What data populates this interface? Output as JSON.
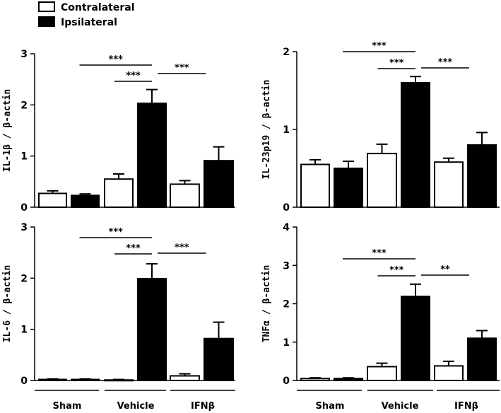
{
  "legend": [
    {
      "label": "Contralateral",
      "fill": "#ffffff"
    },
    {
      "label": "Ipsilateral",
      "fill": "#000000"
    }
  ],
  "groups": [
    "Sham",
    "Vehicle",
    "IFNβ"
  ],
  "chart_data": [
    {
      "type": "bar",
      "ylabel": "IL-1β / β-actin",
      "ylim": [
        0,
        3
      ],
      "yticks": [
        "0",
        "1",
        "2",
        "3"
      ],
      "categories": [
        "Sham",
        "Vehicle",
        "IFNβ"
      ],
      "series": [
        {
          "name": "Contralateral",
          "values": [
            0.27,
            0.55,
            0.45
          ],
          "errors": [
            0.05,
            0.1,
            0.07
          ]
        },
        {
          "name": "Ipsilateral",
          "values": [
            0.23,
            2.03,
            0.91
          ],
          "errors": [
            0.03,
            0.27,
            0.27
          ]
        }
      ],
      "significance": [
        {
          "label": "***",
          "from": [
            0,
            1
          ],
          "to": [
            1,
            1
          ]
        },
        {
          "label": "***",
          "from": [
            1,
            0
          ],
          "to": [
            1,
            1
          ]
        },
        {
          "label": "***",
          "from": [
            1,
            1
          ],
          "to": [
            2,
            1
          ]
        }
      ]
    },
    {
      "type": "bar",
      "ylabel": "IL-23p19 / β-actin",
      "ylim": [
        0,
        2
      ],
      "yticks": [
        "0",
        "1",
        "2"
      ],
      "categories": [
        "Sham",
        "Vehicle",
        "IFNβ"
      ],
      "series": [
        {
          "name": "Contralateral",
          "values": [
            0.55,
            0.69,
            0.58
          ],
          "errors": [
            0.06,
            0.12,
            0.05
          ]
        },
        {
          "name": "Ipsilateral",
          "values": [
            0.5,
            1.6,
            0.8
          ],
          "errors": [
            0.09,
            0.08,
            0.16
          ]
        }
      ],
      "significance": [
        {
          "label": "***",
          "from": [
            0,
            1
          ],
          "to": [
            1,
            1
          ]
        },
        {
          "label": "***",
          "from": [
            1,
            0
          ],
          "to": [
            1,
            1
          ]
        },
        {
          "label": "***",
          "from": [
            1,
            1
          ],
          "to": [
            2,
            1
          ]
        }
      ]
    },
    {
      "type": "bar",
      "ylabel": "IL-6 / β-actin",
      "ylim": [
        0,
        3
      ],
      "yticks": [
        "0",
        "1",
        "2",
        "3"
      ],
      "categories": [
        "Sham",
        "Vehicle",
        "IFNβ"
      ],
      "series": [
        {
          "name": "Contralateral",
          "values": [
            0.02,
            0.01,
            0.09
          ],
          "errors": [
            0.01,
            0.01,
            0.04
          ]
        },
        {
          "name": "Ipsilateral",
          "values": [
            0.02,
            1.99,
            0.82
          ],
          "errors": [
            0.01,
            0.29,
            0.32
          ]
        }
      ],
      "significance": [
        {
          "label": "***",
          "from": [
            0,
            1
          ],
          "to": [
            1,
            1
          ]
        },
        {
          "label": "***",
          "from": [
            1,
            0
          ],
          "to": [
            1,
            1
          ]
        },
        {
          "label": "***",
          "from": [
            1,
            1
          ],
          "to": [
            2,
            1
          ]
        }
      ]
    },
    {
      "type": "bar",
      "ylabel": "TNFα / β-actin",
      "ylim": [
        0,
        4
      ],
      "yticks": [
        "0",
        "1",
        "2",
        "3",
        "4"
      ],
      "categories": [
        "Sham",
        "Vehicle",
        "IFNβ"
      ],
      "series": [
        {
          "name": "Contralateral",
          "values": [
            0.05,
            0.36,
            0.38
          ],
          "errors": [
            0.02,
            0.09,
            0.12
          ]
        },
        {
          "name": "Ipsilateral",
          "values": [
            0.05,
            2.19,
            1.1
          ],
          "errors": [
            0.02,
            0.32,
            0.2
          ]
        }
      ],
      "significance": [
        {
          "label": "***",
          "from": [
            0,
            1
          ],
          "to": [
            1,
            1
          ]
        },
        {
          "label": "***",
          "from": [
            1,
            0
          ],
          "to": [
            1,
            1
          ]
        },
        {
          "label": "**",
          "from": [
            1,
            1
          ],
          "to": [
            2,
            1
          ]
        }
      ]
    }
  ]
}
